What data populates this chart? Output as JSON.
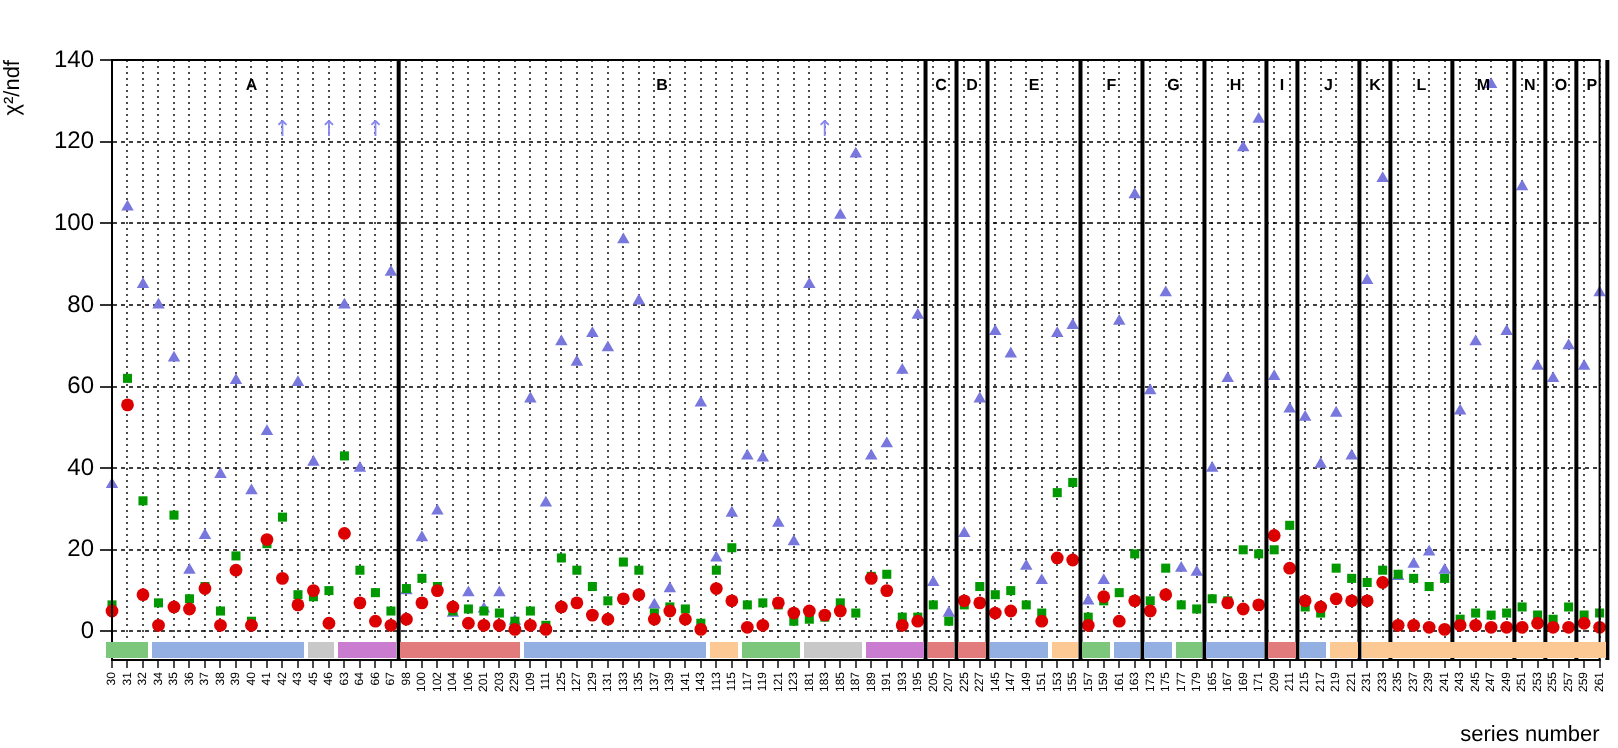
{
  "chart_data": {
    "type": "scatter",
    "ylabel": "χ²/ndf",
    "xlabel": "series number",
    "categories": [
      "30",
      "31",
      "32",
      "34",
      "35",
      "36",
      "37",
      "38",
      "39",
      "40",
      "41",
      "42",
      "43",
      "45",
      "46",
      "63",
      "64",
      "66",
      "67",
      "98",
      "100",
      "102",
      "104",
      "106",
      "201",
      "203",
      "229",
      "109",
      "111",
      "125",
      "127",
      "129",
      "131",
      "133",
      "135",
      "137",
      "139",
      "141",
      "143",
      "113",
      "115",
      "117",
      "119",
      "121",
      "123",
      "181",
      "183",
      "185",
      "187",
      "189",
      "191",
      "193",
      "195",
      "205",
      "207",
      "225",
      "227",
      "145",
      "147",
      "149",
      "151",
      "153",
      "155",
      "157",
      "159",
      "161",
      "163",
      "173",
      "175",
      "177",
      "179",
      "165",
      "167",
      "169",
      "171",
      "209",
      "211",
      "215",
      "217",
      "219",
      "221",
      "231",
      "233",
      "235",
      "237",
      "239",
      "241",
      "243",
      "245",
      "247",
      "249",
      "251",
      "253",
      "255",
      "257",
      "259",
      "261"
    ],
    "series": [
      {
        "color": "#dd0000",
        "marker": "circle",
        "values": [
          5,
          55.5,
          9,
          1.5,
          6,
          5.5,
          10.5,
          1.5,
          15,
          1.5,
          22.5,
          13,
          6.5,
          10,
          2,
          24,
          7,
          2.5,
          1.5,
          3,
          7,
          10,
          6,
          2,
          1.5,
          1.5,
          0.5,
          1.5,
          0.5,
          6,
          7,
          4,
          3,
          8,
          9,
          3,
          5,
          3,
          0.5,
          10.5,
          7.5,
          1,
          1.5,
          7,
          4.5,
          5,
          4,
          5,
          null,
          13,
          10,
          1.5,
          2.5,
          null,
          null,
          7.5,
          7,
          4.5,
          5,
          null,
          2.5,
          18,
          17.5,
          1.5,
          8.5,
          2.5,
          7.5,
          5,
          9,
          null,
          null,
          null,
          7,
          5.5,
          6.5,
          23.5,
          15.5,
          7.5,
          6,
          8,
          7.5,
          7.5,
          12,
          1.5,
          1.5,
          1,
          0.5,
          1.5,
          1.5,
          1,
          1,
          1,
          2,
          1,
          1,
          2,
          1
        ]
      },
      {
        "color": "#009900",
        "marker": "square",
        "values": [
          6.5,
          62,
          32,
          7,
          28.5,
          8,
          11,
          5,
          18.5,
          2.5,
          21.5,
          28,
          9,
          8.5,
          10,
          43,
          15,
          9.5,
          5,
          10.5,
          13,
          11,
          5,
          5.5,
          5,
          4.5,
          2.5,
          5,
          1.5,
          18,
          15,
          11,
          7.5,
          17,
          15,
          4.5,
          6,
          5.5,
          2,
          15,
          20.5,
          6.5,
          7,
          6.5,
          2.5,
          3,
          3.5,
          7,
          4.5,
          13.5,
          14,
          3.5,
          3.5,
          6.5,
          2.5,
          6.5,
          11,
          9,
          10,
          6.5,
          4.5,
          34,
          36.5,
          3.5,
          7.5,
          9.5,
          19,
          7.5,
          15.5,
          6.5,
          5.5,
          8,
          7.5,
          20,
          19,
          20,
          26,
          6,
          4.5,
          15.5,
          13,
          12,
          15,
          14,
          13,
          11,
          13,
          3,
          4.5,
          4,
          4.5,
          6,
          4,
          3,
          6,
          4,
          4.5
        ]
      },
      {
        "color": "#7777dd",
        "marker": "triangle",
        "values": [
          36,
          104,
          85,
          80,
          67,
          15,
          23.5,
          38.5,
          61.5,
          34.5,
          49,
          null,
          61,
          41.5,
          null,
          80,
          40,
          null,
          88,
          10,
          23,
          29.5,
          4.5,
          9.5,
          5.5,
          9.5,
          2.5,
          57,
          31.5,
          71,
          66,
          73,
          69.5,
          96,
          81,
          6.5,
          10.5,
          null,
          56,
          18,
          29,
          43,
          42.5,
          26.5,
          22,
          85,
          null,
          102,
          117,
          43,
          46,
          64,
          77.5,
          12,
          4.5,
          24,
          57,
          73.5,
          68,
          16,
          12.5,
          73,
          75,
          7.5,
          12.5,
          76,
          107,
          59,
          83,
          15.5,
          14.5,
          40,
          62,
          118.5,
          125.5,
          62.5,
          54.5,
          52.5,
          41,
          53.5,
          43,
          86,
          111,
          13.5,
          16.5,
          19.5,
          15,
          54,
          71,
          134,
          73.5,
          109,
          65,
          62,
          70,
          65,
          83
        ]
      }
    ],
    "ylim": [
      -7,
      140
    ],
    "yticks": [
      0,
      20,
      40,
      60,
      80,
      100,
      120,
      140
    ],
    "grid": true,
    "annotations": [
      "A",
      "B",
      "C",
      "D",
      "E",
      "F",
      "G",
      "H",
      "I",
      "J",
      "K",
      "L",
      "M",
      "N",
      "O",
      "P",
      "↑",
      "↑",
      "↑",
      "↑"
    ]
  }
}
